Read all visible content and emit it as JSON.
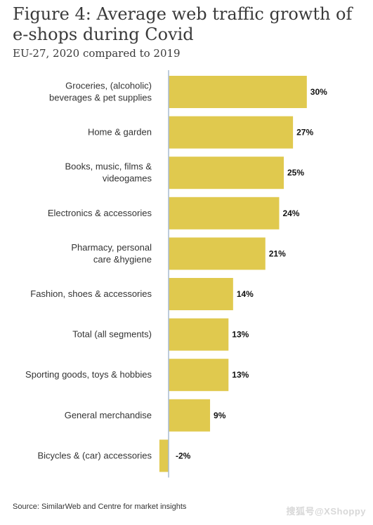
{
  "header": {
    "title": "Figure 4: Average web traffic growth of e-shops during Covid",
    "subtitle": "EU-27, 2020 compared to 2019"
  },
  "footer": {
    "source": "Source: SimilarWeb and Centre for market insights",
    "watermark": "搜狐号@XShoppy"
  },
  "chart_data": {
    "type": "bar",
    "orientation": "horizontal",
    "title": "Figure 4: Average web traffic growth of e-shops during Covid",
    "subtitle": "EU-27, 2020 compared to 2019",
    "categories": [
      [
        "Groceries, (alcoholic)",
        "beverages & pet supplies"
      ],
      [
        "Home & garden"
      ],
      [
        "Books, music, films &",
        "videogames"
      ],
      [
        "Electronics & accessories"
      ],
      [
        "Pharmacy, personal",
        "care &hygiene"
      ],
      [
        "Fashion, shoes & accessories"
      ],
      [
        "Total (all segments)"
      ],
      [
        "Sporting goods, toys & hobbies"
      ],
      [
        "General merchandise"
      ],
      [
        "Bicycles & (car) accessories"
      ]
    ],
    "values": [
      30,
      27,
      25,
      24,
      21,
      14,
      13,
      13,
      9,
      -2
    ],
    "value_labels": [
      "30%",
      "27%",
      "25%",
      "24%",
      "21%",
      "14%",
      "13%",
      "13%",
      "9%",
      "-2%"
    ],
    "bar_color": "#e0c94e",
    "axis_color": "#a9bcd0",
    "grid": false,
    "legend": "none"
  }
}
